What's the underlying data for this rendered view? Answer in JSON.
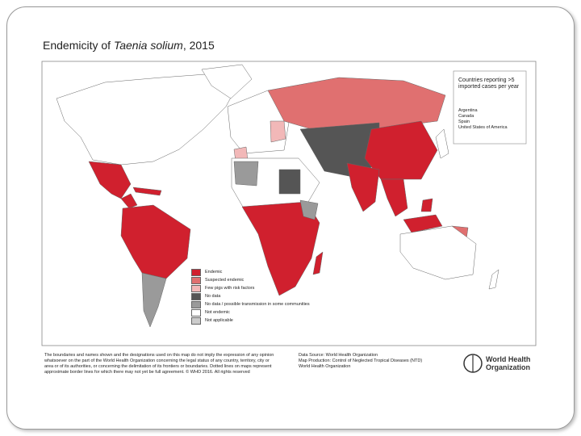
{
  "title": {
    "before": "Endemicity of ",
    "italic": "Taenia solium",
    "after": ", 2015"
  },
  "inset": {
    "heading": "Countries reporting >5 imported cases per year",
    "countries": [
      "Argentina",
      "Canada",
      "Spain",
      "United States of America"
    ]
  },
  "legend": [
    {
      "label": "Endemic",
      "color": "#d0202e"
    },
    {
      "label": "Suspected endemic",
      "color": "#e07070"
    },
    {
      "label": "Few pigs with risk factors",
      "color": "#f2b8b8"
    },
    {
      "label": "No data",
      "color": "#555555"
    },
    {
      "label": "No data / possible transmission in some communities",
      "color": "#9a9a9a"
    },
    {
      "label": "Not endemic",
      "color": "#ffffff"
    },
    {
      "label": "Not applicable",
      "color": "#cccccc"
    }
  ],
  "footer": {
    "disclaimer": "The boundaries and names shown and the designations used on this map do not imply the expression of any opinion whatsoever on the part of the World Health Organization concerning the legal status of any country, territory, city or area or of its authorities, or concerning the delimitation of its frontiers or boundaries. Dotted lines on maps represent approximate border lines for which there may not yet be full agreement. © WHO 2016. All rights reserved",
    "source": [
      "Data Source: World Health Organization",
      "Map Production: Control of Neglected Tropical Diseases (NTD)",
      "World Health Organization"
    ],
    "logo": [
      "World Health",
      "Organization"
    ]
  }
}
